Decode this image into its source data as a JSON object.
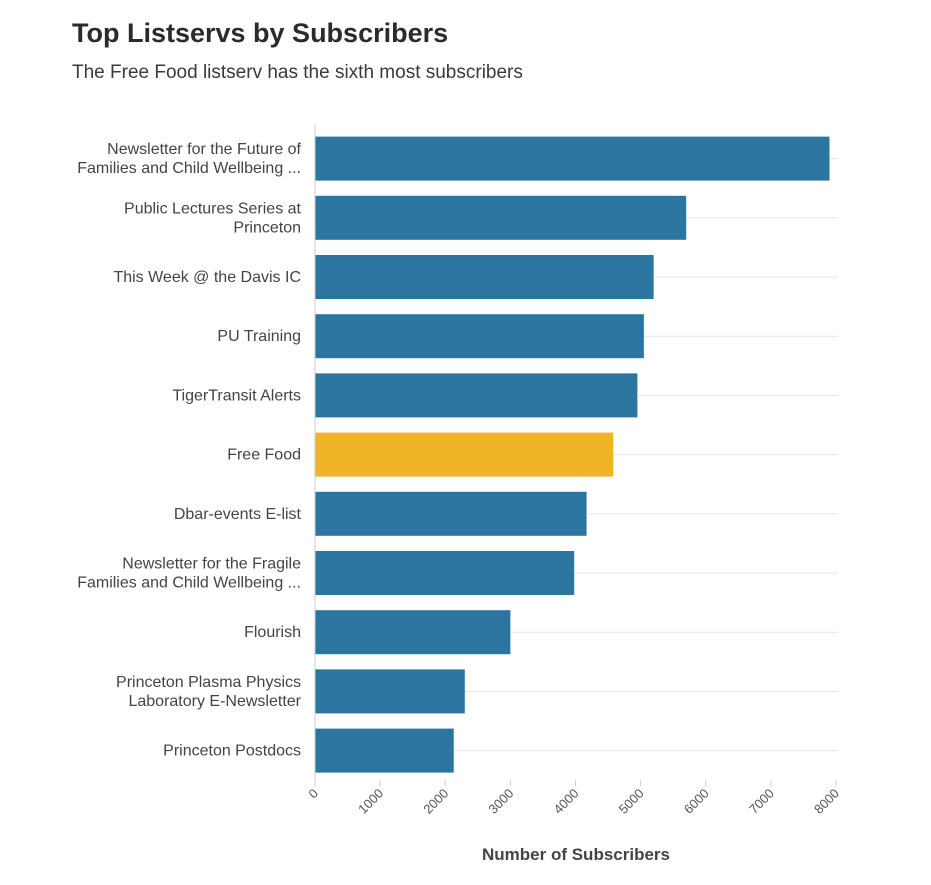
{
  "chart_data": {
    "type": "bar",
    "orientation": "horizontal",
    "title": "Top Listservs by Subscribers",
    "subtitle": "The Free Food listserv has the sixth most subscribers",
    "xlabel": "Number of Subscribers",
    "ylabel": "",
    "xlim": [
      0,
      8000
    ],
    "xticks": [
      0,
      1000,
      2000,
      3000,
      4000,
      5000,
      6000,
      7000,
      8000
    ],
    "grid": true,
    "highlight_category": "Free Food",
    "colors": {
      "default": "#2b75a0",
      "highlight": "#f0b429",
      "grid": "#e6e6e6",
      "axis": "#cccccc"
    },
    "categories": [
      [
        "Newsletter for the Future of",
        "Families and Child Wellbeing ..."
      ],
      [
        "Public Lectures Series at",
        "Princeton"
      ],
      [
        "This Week @ the Davis IC"
      ],
      [
        "PU Training"
      ],
      [
        "TigerTransit Alerts"
      ],
      [
        "Free Food"
      ],
      [
        "Dbar-events E-list"
      ],
      [
        "Newsletter for the Fragile",
        "Families and Child Wellbeing ..."
      ],
      [
        "Flourish"
      ],
      [
        "Princeton Plasma Physics",
        "Laboratory E-Newsletter"
      ],
      [
        "Princeton Postdocs"
      ]
    ],
    "values": [
      7900,
      5700,
      5200,
      5050,
      4950,
      4580,
      4170,
      3980,
      3000,
      2300,
      2130
    ]
  }
}
